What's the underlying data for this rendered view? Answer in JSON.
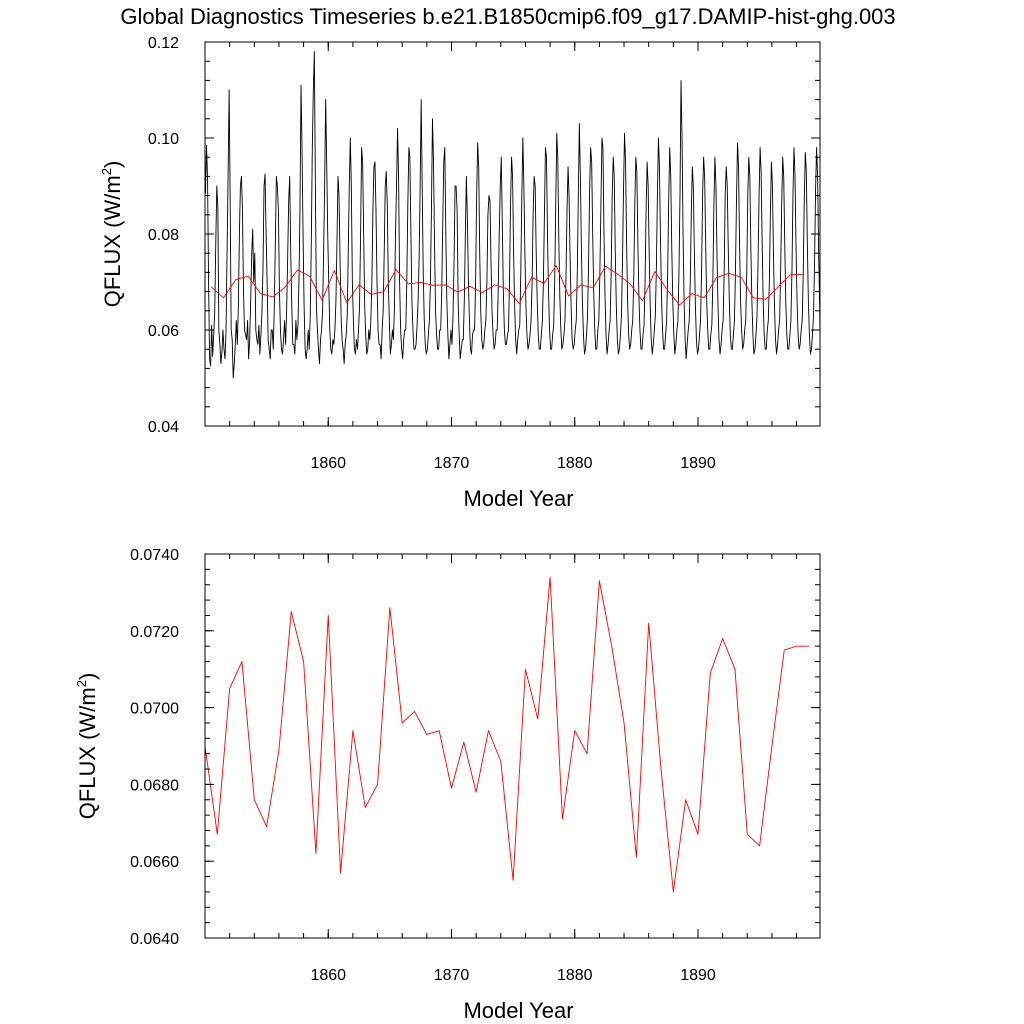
{
  "figure": {
    "title": "Global Diagnostics Timeseries b.e21.B1850cmip6.f09_g17.DAMIP-hist-ghg.003"
  },
  "colors": {
    "monthly": "#000000",
    "annual": "#ff0000"
  },
  "chart_data": [
    {
      "type": "line",
      "xlabel": "Model Year",
      "ylabel": "QFLUX (W/m",
      "ylabel_sup": "2",
      "ylabel_close": ")",
      "xlim": [
        1850,
        1899.9
      ],
      "ylim": [
        0.04,
        0.12
      ],
      "xticks": [
        1860,
        1870,
        1880,
        1890
      ],
      "xtick_labels": [
        "1860",
        "1870",
        "1880",
        "1890"
      ],
      "yticks": [
        0.04,
        0.06,
        0.08,
        0.1,
        0.12
      ],
      "ytick_labels": [
        "0.04",
        "0.06",
        "0.08",
        "0.10",
        "0.12"
      ],
      "grid": false,
      "series": [
        {
          "key": "monthly",
          "color": "#000000",
          "x_start": 1850.04,
          "x_step": 0.0833333,
          "values": [
            0.0885,
            0.0985,
            0.0915,
            0.07,
            0.054,
            0.0525,
            0.061,
            0.0545,
            0.059,
            0.064,
            0.078,
            0.09,
            0.086,
            0.06,
            0.057,
            0.053,
            0.0555,
            0.06,
            0.056,
            0.054,
            0.06,
            0.076,
            0.092,
            0.11,
            0.088,
            0.06,
            0.058,
            0.05,
            0.053,
            0.057,
            0.062,
            0.057,
            0.065,
            0.08,
            0.09,
            0.092,
            0.085,
            0.068,
            0.06,
            0.059,
            0.058,
            0.062,
            0.054,
            0.058,
            0.066,
            0.076,
            0.081,
            0.07,
            0.076,
            0.06,
            0.058,
            0.057,
            0.061,
            0.055,
            0.059,
            0.064,
            0.073,
            0.09,
            0.0925,
            0.08,
            0.07,
            0.058,
            0.056,
            0.054,
            0.06,
            0.06,
            0.056,
            0.065,
            0.078,
            0.092,
            0.09,
            0.085,
            0.068,
            0.06,
            0.056,
            0.055,
            0.058,
            0.062,
            0.057,
            0.064,
            0.075,
            0.087,
            0.092,
            0.076,
            0.065,
            0.057,
            0.057,
            0.055,
            0.062,
            0.058,
            0.061,
            0.07,
            0.085,
            0.111,
            0.098,
            0.08,
            0.065,
            0.056,
            0.054,
            0.056,
            0.06,
            0.056,
            0.063,
            0.078,
            0.098,
            0.11,
            0.118,
            0.09,
            0.065,
            0.06,
            0.056,
            0.053,
            0.058,
            0.06,
            0.064,
            0.076,
            0.09,
            0.108,
            0.095,
            0.08,
            0.07,
            0.06,
            0.056,
            0.055,
            0.058,
            0.057,
            0.06,
            0.066,
            0.078,
            0.092,
            0.088,
            0.075,
            0.063,
            0.058,
            0.056,
            0.053,
            0.057,
            0.059,
            0.063,
            0.076,
            0.09,
            0.1,
            0.09,
            0.07,
            0.062,
            0.056,
            0.055,
            0.058,
            0.056,
            0.06,
            0.065,
            0.08,
            0.098,
            0.095,
            0.08,
            0.065,
            0.059,
            0.055,
            0.056,
            0.06,
            0.058,
            0.062,
            0.07,
            0.085,
            0.094,
            0.095,
            0.085,
            0.07,
            0.06,
            0.057,
            0.057,
            0.054,
            0.06,
            0.064,
            0.076,
            0.09,
            0.093,
            0.086,
            0.07,
            0.062,
            0.055,
            0.057,
            0.06,
            0.058,
            0.065,
            0.08,
            0.09,
            0.102,
            0.092,
            0.07,
            0.06,
            0.056,
            0.054,
            0.058,
            0.06,
            0.06,
            0.07,
            0.086,
            0.098,
            0.096,
            0.08,
            0.066,
            0.06,
            0.056,
            0.056,
            0.057,
            0.061,
            0.066,
            0.075,
            0.09,
            0.108,
            0.09,
            0.072,
            0.062,
            0.057,
            0.055,
            0.056,
            0.059,
            0.062,
            0.07,
            0.085,
            0.104,
            0.095,
            0.078,
            0.064,
            0.059,
            0.056,
            0.056,
            0.06,
            0.06,
            0.068,
            0.082,
            0.095,
            0.098,
            0.08,
            0.066,
            0.059,
            0.054,
            0.057,
            0.06,
            0.057,
            0.063,
            0.074,
            0.09,
            0.09,
            0.085,
            0.066,
            0.059,
            0.054,
            0.056,
            0.058,
            0.058,
            0.066,
            0.08,
            0.092,
            0.083,
            0.07,
            0.062,
            0.056,
            0.055,
            0.059,
            0.06,
            0.06,
            0.07,
            0.088,
            0.099,
            0.094,
            0.076,
            0.064,
            0.058,
            0.056,
            0.057,
            0.06,
            0.062,
            0.07,
            0.084,
            0.088,
            0.087,
            0.074,
            0.064,
            0.059,
            0.056,
            0.057,
            0.06,
            0.06,
            0.068,
            0.08,
            0.09,
            0.096,
            0.082,
            0.068,
            0.06,
            0.057,
            0.057,
            0.059,
            0.06,
            0.07,
            0.086,
            0.096,
            0.092,
            0.076,
            0.065,
            0.058,
            0.055,
            0.058,
            0.06,
            0.061,
            0.072,
            0.088,
            0.1,
            0.09,
            0.076,
            0.065,
            0.059,
            0.056,
            0.057,
            0.059,
            0.062,
            0.07,
            0.084,
            0.092,
            0.09,
            0.076,
            0.066,
            0.059,
            0.056,
            0.056,
            0.059,
            0.062,
            0.07,
            0.084,
            0.098,
            0.096,
            0.08,
            0.068,
            0.06,
            0.056,
            0.056,
            0.059,
            0.061,
            0.07,
            0.086,
            0.101,
            0.096,
            0.079,
            0.067,
            0.06,
            0.056,
            0.057,
            0.059,
            0.062,
            0.071,
            0.085,
            0.094,
            0.088,
            0.075,
            0.065,
            0.058,
            0.056,
            0.057,
            0.06,
            0.062,
            0.072,
            0.088,
            0.103,
            0.092,
            0.077,
            0.066,
            0.059,
            0.055,
            0.056,
            0.059,
            0.063,
            0.074,
            0.089,
            0.098,
            0.095,
            0.08,
            0.068,
            0.06,
            0.056,
            0.056,
            0.06,
            0.062,
            0.072,
            0.086,
            0.1,
            0.098,
            0.08,
            0.067,
            0.059,
            0.055,
            0.057,
            0.06,
            0.062,
            0.072,
            0.088,
            0.096,
            0.092,
            0.076,
            0.065,
            0.058,
            0.055,
            0.056,
            0.059,
            0.063,
            0.074,
            0.089,
            0.101,
            0.095,
            0.078,
            0.066,
            0.059,
            0.056,
            0.057,
            0.06,
            0.062,
            0.071,
            0.086,
            0.096,
            0.093,
            0.078,
            0.067,
            0.06,
            0.056,
            0.056,
            0.059,
            0.061,
            0.07,
            0.085,
            0.095,
            0.09,
            0.076,
            0.065,
            0.058,
            0.055,
            0.057,
            0.06,
            0.063,
            0.073,
            0.088,
            0.1,
            0.094,
            0.079,
            0.067,
            0.06,
            0.056,
            0.056,
            0.059,
            0.062,
            0.072,
            0.087,
            0.098,
            0.092,
            0.077,
            0.066,
            0.059,
            0.055,
            0.057,
            0.06,
            0.062,
            0.072,
            0.088,
            0.112,
            0.1,
            0.08,
            0.066,
            0.058,
            0.054,
            0.057,
            0.06,
            0.062,
            0.07,
            0.084,
            0.094,
            0.09,
            0.076,
            0.065,
            0.058,
            0.055,
            0.056,
            0.059,
            0.062,
            0.072,
            0.088,
            0.096,
            0.092,
            0.078,
            0.066,
            0.06,
            0.056,
            0.056,
            0.059,
            0.061,
            0.07,
            0.086,
            0.096,
            0.09,
            0.076,
            0.065,
            0.058,
            0.055,
            0.057,
            0.06,
            0.062,
            0.072,
            0.088,
            0.094,
            0.09,
            0.077,
            0.066,
            0.059,
            0.056,
            0.056,
            0.059,
            0.062,
            0.072,
            0.087,
            0.099,
            0.094,
            0.078,
            0.066,
            0.06,
            0.056,
            0.057,
            0.06,
            0.062,
            0.072,
            0.088,
            0.096,
            0.092,
            0.077,
            0.066,
            0.059,
            0.055,
            0.056,
            0.059,
            0.063,
            0.074,
            0.088,
            0.098,
            0.093,
            0.078,
            0.066,
            0.059,
            0.056,
            0.056,
            0.06,
            0.062,
            0.07,
            0.084,
            0.095,
            0.09,
            0.076,
            0.065,
            0.058,
            0.055,
            0.057,
            0.06,
            0.062,
            0.072,
            0.086,
            0.096,
            0.092,
            0.078,
            0.066,
            0.059,
            0.056,
            0.056,
            0.059,
            0.062,
            0.072,
            0.088,
            0.098,
            0.092,
            0.077,
            0.066,
            0.059,
            0.056,
            0.057,
            0.06,
            0.062,
            0.072,
            0.087,
            0.097,
            0.093,
            0.078,
            0.066,
            0.059,
            0.055,
            0.056,
            0.059,
            0.063,
            0.074,
            0.089,
            0.098,
            0.092,
            0.076,
            0.065,
            0.058,
            0.055,
            0.057,
            0.06,
            0.062,
            0.072,
            0.086,
            0.096,
            0.09,
            0.076,
            0.066,
            0.059,
            0.056,
            0.056,
            0.059,
            0.062,
            0.072,
            0.088,
            0.096,
            0.092,
            0.077,
            0.066,
            0.059,
            0.056,
            0.057,
            0.06,
            0.062,
            0.072,
            0.086,
            0.095,
            0.09,
            0.076,
            0.065,
            0.058,
            0.055,
            0.056,
            0.059,
            0.063,
            0.074,
            0.088,
            0.098,
            0.094,
            0.078,
            0.066,
            0.06,
            0.056,
            0.056,
            0.059,
            0.062,
            0.072,
            0.086,
            0.095,
            0.092,
            0.077,
            0.066,
            0.059,
            0.056,
            0.057,
            0.06,
            0.062,
            0.072,
            0.088,
            0.095,
            0.09,
            0.076,
            0.065,
            0.058,
            0.055,
            0.056,
            0.059,
            0.063,
            0.072,
            0.086,
            0.095,
            0.094,
            0.078,
            0.067,
            0.06,
            0.056,
            0.05
          ]
        },
        {
          "key": "annual",
          "color": "#ff0000",
          "x": [
            1850.5,
            1851.5,
            1852.5,
            1853.5,
            1854.5,
            1855.5,
            1856.5,
            1857.5,
            1858.5,
            1859.5,
            1860.5,
            1861.5,
            1862.5,
            1863.5,
            1864.5,
            1865.5,
            1866.5,
            1867.5,
            1868.5,
            1869.5,
            1870.5,
            1871.5,
            1872.5,
            1873.5,
            1874.5,
            1875.5,
            1876.5,
            1877.5,
            1878.5,
            1879.5,
            1880.5,
            1881.5,
            1882.5,
            1883.5,
            1884.5,
            1885.5,
            1886.5,
            1887.5,
            1888.5,
            1889.5,
            1890.5,
            1891.5,
            1892.5,
            1893.5,
            1894.5,
            1895.5,
            1896.5,
            1897.5,
            1898.5
          ],
          "values": [
            0.069,
            0.0667,
            0.0705,
            0.0712,
            0.0676,
            0.0669,
            0.0689,
            0.0725,
            0.0712,
            0.0662,
            0.0724,
            0.0657,
            0.0694,
            0.0674,
            0.068,
            0.0726,
            0.0696,
            0.0699,
            0.0693,
            0.0694,
            0.0679,
            0.0691,
            0.0678,
            0.0694,
            0.0686,
            0.0655,
            0.071,
            0.0697,
            0.0734,
            0.0671,
            0.0694,
            0.0688,
            0.0733,
            0.0716,
            0.0696,
            0.0661,
            0.0722,
            0.0684,
            0.0652,
            0.0676,
            0.0667,
            0.0709,
            0.0718,
            0.071,
            0.0667,
            0.0664,
            0.069,
            0.0715,
            0.0716
          ]
        }
      ]
    },
    {
      "type": "line",
      "xlabel": "Model Year",
      "ylabel": "QFLUX (W/m",
      "ylabel_sup": "2",
      "ylabel_close": ")",
      "xlim": [
        1850,
        1899.9
      ],
      "ylim": [
        0.064,
        0.074
      ],
      "xticks": [
        1860,
        1870,
        1880,
        1890
      ],
      "xtick_labels": [
        "1860",
        "1870",
        "1880",
        "1890"
      ],
      "yticks": [
        0.064,
        0.066,
        0.068,
        0.07,
        0.072,
        0.074
      ],
      "ytick_labels": [
        "0.0640",
        "0.0660",
        "0.0680",
        "0.0700",
        "0.0720",
        "0.0740"
      ],
      "grid": false,
      "series": [
        {
          "key": "annual",
          "color": "#ff0000",
          "x": [
            1850.0,
            1851.0,
            1852.0,
            1853.0,
            1854.0,
            1855.0,
            1856.0,
            1857.0,
            1858.0,
            1859.0,
            1860.0,
            1861.0,
            1862.0,
            1863.0,
            1864.0,
            1865.0,
            1866.0,
            1867.0,
            1868.0,
            1869.0,
            1870.0,
            1871.0,
            1872.0,
            1873.0,
            1874.0,
            1875.0,
            1876.0,
            1877.0,
            1878.0,
            1879.0,
            1880.0,
            1881.0,
            1882.0,
            1883.0,
            1884.0,
            1885.0,
            1886.0,
            1887.0,
            1888.0,
            1889.0,
            1890.0,
            1891.0,
            1892.0,
            1893.0,
            1894.0,
            1895.0,
            1896.0,
            1897.0,
            1898.0,
            1899.0
          ],
          "values": [
            0.069,
            0.0667,
            0.0705,
            0.0712,
            0.0676,
            0.0669,
            0.0689,
            0.0725,
            0.0712,
            0.0662,
            0.0724,
            0.0657,
            0.0694,
            0.0674,
            0.068,
            0.0726,
            0.0696,
            0.0699,
            0.0693,
            0.0694,
            0.0679,
            0.0691,
            0.0678,
            0.0694,
            0.0686,
            0.0655,
            0.071,
            0.0697,
            0.0734,
            0.0671,
            0.0694,
            0.0688,
            0.0733,
            0.0716,
            0.0696,
            0.0661,
            0.0722,
            0.0684,
            0.0652,
            0.0676,
            0.0667,
            0.0709,
            0.0718,
            0.071,
            0.0667,
            0.0664,
            0.069,
            0.0715,
            0.0716,
            0.0716
          ]
        }
      ]
    }
  ]
}
